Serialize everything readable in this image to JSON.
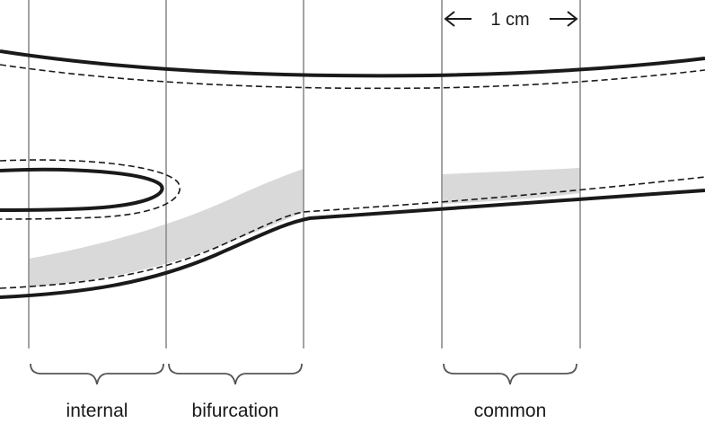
{
  "scale_bar": {
    "label": "1 cm"
  },
  "sections": [
    {
      "id": "internal",
      "label": "internal"
    },
    {
      "id": "bifurcation",
      "label": "bifurcation"
    },
    {
      "id": "common",
      "label": "common"
    }
  ],
  "colors": {
    "vessel_wall": "#1a1a1a",
    "inner_lumen_dashed": "#1a1a1a",
    "plaque_fill": "#d9d9d9",
    "grid_line": "#8c8c8c",
    "background": "#ffffff"
  }
}
